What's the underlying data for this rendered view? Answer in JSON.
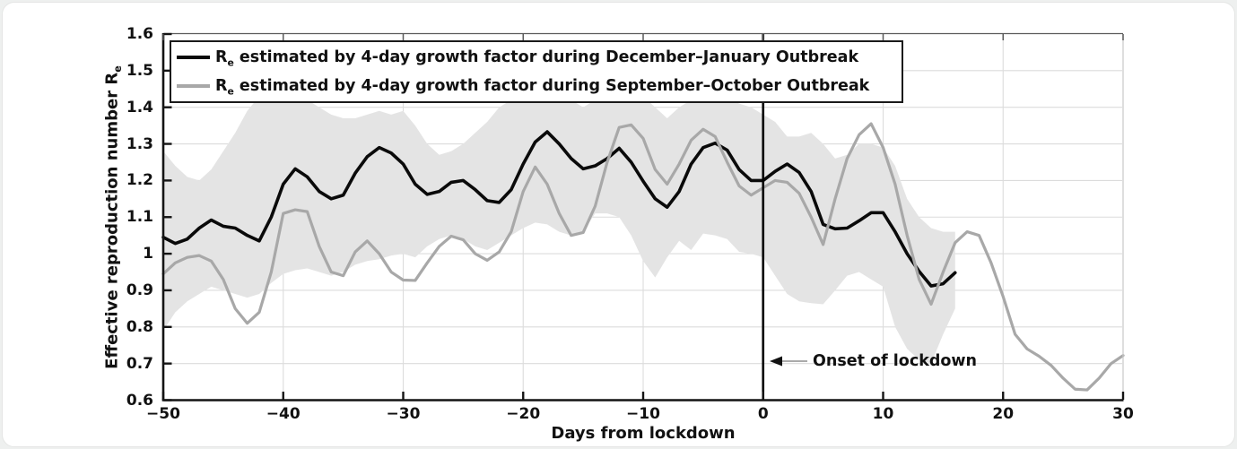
{
  "chart_data": {
    "type": "line",
    "title": "",
    "xlabel": "Days from lockdown",
    "ylabel_main": "Effective reproduction number R",
    "ylabel_sub": "e",
    "xlim": [
      -50,
      30
    ],
    "ylim": [
      0.6,
      1.6
    ],
    "grid": true,
    "legend_position": "top-left",
    "x_tick_values": [
      -50,
      -40,
      -30,
      -20,
      -10,
      0,
      10,
      20,
      30
    ],
    "x_tick_labels": [
      "−50",
      "−40",
      "−30",
      "−20",
      "−10",
      "0",
      "10",
      "20",
      "30"
    ],
    "y_tick_values": [
      0.6,
      0.7,
      0.8,
      0.9,
      1.0,
      1.1,
      1.2,
      1.3,
      1.4,
      1.5,
      1.6
    ],
    "y_tick_labels": [
      "0.6",
      "0.7",
      "0.8",
      "0.9",
      "1",
      "1.1",
      "1.2",
      "1.3",
      "1.4",
      "1.5",
      "1.6"
    ],
    "onset_line_day": 0,
    "annotation": {
      "text": "Onset of lockdown",
      "points_to_day": 0,
      "y_value": 0.705
    },
    "colors": {
      "grid": "#dcdcdc",
      "axis": "#141414",
      "band": "#e4e4e4",
      "dec_jan_line": "#0a0a0a",
      "sep_oct_line": "#a8a8a8"
    },
    "band": {
      "name": "confidence-band",
      "day_start": -50,
      "top": [
        1.28,
        1.24,
        1.21,
        1.2,
        1.23,
        1.28,
        1.33,
        1.39,
        1.43,
        1.44,
        1.44,
        1.43,
        1.42,
        1.4,
        1.38,
        1.37,
        1.37,
        1.38,
        1.39,
        1.38,
        1.39,
        1.35,
        1.3,
        1.27,
        1.28,
        1.3,
        1.33,
        1.36,
        1.4,
        1.42,
        1.43,
        1.45,
        1.46,
        1.44,
        1.42,
        1.4,
        1.42,
        1.44,
        1.45,
        1.44,
        1.43,
        1.4,
        1.37,
        1.4,
        1.42,
        1.44,
        1.45,
        1.43,
        1.41,
        1.4,
        1.38,
        1.36,
        1.32,
        1.32,
        1.33,
        1.3,
        1.26,
        1.27,
        1.3,
        1.3,
        1.29,
        1.24,
        1.15,
        1.1,
        1.07,
        1.06,
        1.06
      ],
      "bottom": [
        0.79,
        0.84,
        0.87,
        0.89,
        0.91,
        0.9,
        0.89,
        0.88,
        0.89,
        0.92,
        0.945,
        0.955,
        0.96,
        0.95,
        0.94,
        0.95,
        0.97,
        0.98,
        0.985,
        0.995,
        1.0,
        0.99,
        1.02,
        1.04,
        1.05,
        1.04,
        1.02,
        1.01,
        1.03,
        1.05,
        1.07,
        1.085,
        1.08,
        1.06,
        1.05,
        1.06,
        1.11,
        1.11,
        1.1,
        1.05,
        0.98,
        0.935,
        0.99,
        1.035,
        1.01,
        1.055,
        1.05,
        1.04,
        1.005,
        1.0,
        0.99,
        0.94,
        0.89,
        0.87,
        0.865,
        0.862,
        0.9,
        0.94,
        0.95,
        0.93,
        0.91,
        0.8,
        0.74,
        0.71,
        0.7,
        0.78,
        0.85
      ]
    },
    "series": [
      {
        "name": "dec-jan",
        "legend_r": "R",
        "legend_sub": "e",
        "legend_rest": " estimated by 4-day growth factor during December–January Outbreak",
        "color": "#0a0a0a",
        "line_width": 3.6,
        "day_start": -50,
        "values": [
          1.045,
          1.028,
          1.04,
          1.07,
          1.092,
          1.075,
          1.07,
          1.05,
          1.035,
          1.1,
          1.19,
          1.232,
          1.21,
          1.17,
          1.15,
          1.16,
          1.22,
          1.265,
          1.29,
          1.275,
          1.245,
          1.19,
          1.162,
          1.17,
          1.195,
          1.2,
          1.175,
          1.145,
          1.14,
          1.175,
          1.245,
          1.305,
          1.333,
          1.3,
          1.26,
          1.232,
          1.24,
          1.26,
          1.288,
          1.25,
          1.198,
          1.15,
          1.127,
          1.17,
          1.245,
          1.29,
          1.302,
          1.283,
          1.23,
          1.2,
          1.2,
          1.225,
          1.245,
          1.222,
          1.17,
          1.08,
          1.068,
          1.07,
          1.09,
          1.112,
          1.112,
          1.06,
          1.0,
          0.952,
          0.912,
          0.918,
          0.948
        ]
      },
      {
        "name": "sep-oct",
        "legend_r": "R",
        "legend_sub": "e",
        "legend_rest": " estimated by 4-day growth factor during September–October Outbreak",
        "color": "#a8a8a8",
        "line_width": 3.2,
        "day_start": -50,
        "values": [
          0.945,
          0.975,
          0.99,
          0.995,
          0.98,
          0.93,
          0.85,
          0.81,
          0.84,
          0.95,
          1.11,
          1.12,
          1.115,
          1.02,
          0.95,
          0.94,
          1.005,
          1.035,
          1.0,
          0.95,
          0.928,
          0.927,
          0.975,
          1.02,
          1.048,
          1.038,
          1.0,
          0.982,
          1.005,
          1.06,
          1.17,
          1.237,
          1.19,
          1.11,
          1.05,
          1.058,
          1.13,
          1.25,
          1.345,
          1.352,
          1.315,
          1.23,
          1.19,
          1.245,
          1.31,
          1.34,
          1.32,
          1.25,
          1.185,
          1.16,
          1.18,
          1.2,
          1.195,
          1.165,
          1.1,
          1.025,
          1.15,
          1.26,
          1.325,
          1.355,
          1.29,
          1.19,
          1.05,
          0.93,
          0.862,
          0.95,
          1.03,
          1.06,
          1.05,
          0.975,
          0.883,
          0.78,
          0.74,
          0.72,
          0.695,
          0.66,
          0.63,
          0.628,
          0.66,
          0.7,
          0.722
        ]
      }
    ]
  }
}
